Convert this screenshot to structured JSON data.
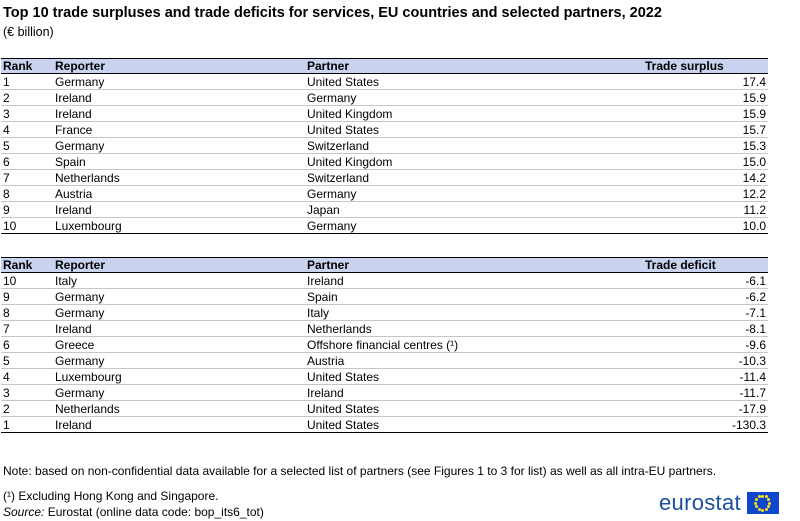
{
  "title": "Top 10 trade surpluses and trade deficits for services, EU countries and selected partners, 2022",
  "subtitle": "(€ billion)",
  "surplus": {
    "headers": [
      "Rank",
      "Reporter",
      "Partner",
      "Trade surplus"
    ],
    "rows": [
      [
        "1",
        "Germany",
        "United States",
        "17.4"
      ],
      [
        "2",
        "Ireland",
        "Germany",
        "15.9"
      ],
      [
        "3",
        "Ireland",
        "United Kingdom",
        "15.9"
      ],
      [
        "4",
        "France",
        "United States",
        "15.7"
      ],
      [
        "5",
        "Germany",
        "Switzerland",
        "15.3"
      ],
      [
        "6",
        "Spain",
        "United Kingdom",
        "15.0"
      ],
      [
        "7",
        "Netherlands",
        "Switzerland",
        "14.2"
      ],
      [
        "8",
        "Austria",
        "Germany",
        "12.2"
      ],
      [
        "9",
        "Ireland",
        "Japan",
        "11.2"
      ],
      [
        "10",
        "Luxembourg",
        "Germany",
        "10.0"
      ]
    ]
  },
  "deficit": {
    "headers": [
      "Rank",
      "Reporter",
      "Partner",
      "Trade deficit"
    ],
    "rows": [
      [
        "10",
        "Italy",
        "Ireland",
        "-6.1"
      ],
      [
        "9",
        "Germany",
        "Spain",
        "-6.2"
      ],
      [
        "8",
        "Germany",
        "Italy",
        "-7.1"
      ],
      [
        "7",
        "Ireland",
        "Netherlands",
        "-8.1"
      ],
      [
        "6",
        "Greece",
        "Offshore financial centres (¹)",
        "-9.6"
      ],
      [
        "5",
        "Germany",
        "Austria",
        "-10.3"
      ],
      [
        "4",
        "Luxembourg",
        "United States",
        "-11.4"
      ],
      [
        "3",
        "Germany",
        "Ireland",
        "-11.7"
      ],
      [
        "2",
        "Netherlands",
        "United States",
        "-17.9"
      ],
      [
        "1",
        "Ireland",
        "United States",
        "-130.3"
      ]
    ]
  },
  "note": "Note: based on non-confidential data available for a selected list of partners (see Figures 1 to 3 for list) as well as all intra-EU partners.",
  "footnote": "(¹) Excluding Hong Kong and Singapore.",
  "source_label": "Source:",
  "source_text": " Eurostat (online data code: bop_its6_tot)",
  "logo": "eurostat",
  "colors": {
    "header_bg": "#c9d2ee",
    "logo_blue": "#1a4fa0",
    "flag_blue": "#0e47cb",
    "flag_star": "#ffe11a"
  }
}
